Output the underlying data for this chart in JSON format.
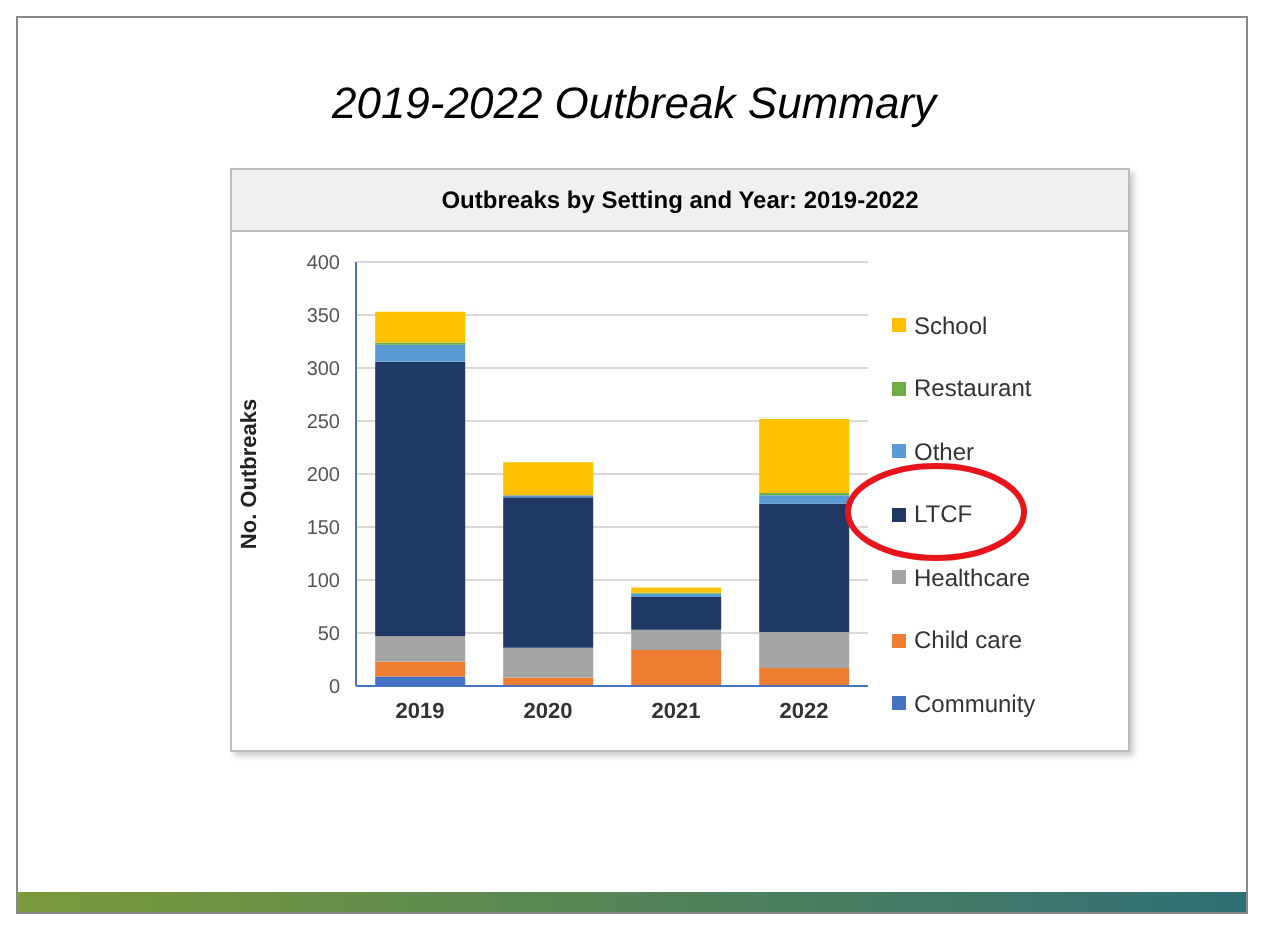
{
  "chart_data": {
    "type": "bar",
    "title": "2019-2022 Outbreak Summary",
    "subtitle": "Outbreaks by Setting and Year: 2019-2022",
    "ylabel": "No. Outbreaks",
    "categories": [
      "2019",
      "2020",
      "2021",
      "2022"
    ],
    "stacked": true,
    "ylim": [
      0,
      400
    ],
    "yticks": [
      0,
      50,
      100,
      150,
      200,
      250,
      300,
      350,
      400
    ],
    "grid": "y",
    "legend": "right",
    "series": [
      {
        "name": "Community",
        "color": "#4472c4",
        "values": [
          9,
          null,
          null,
          1
        ]
      },
      {
        "name": "Child care",
        "color": "#ed7d31",
        "values": [
          14,
          8,
          34,
          16
        ]
      },
      {
        "name": "Healthcare",
        "color": "#a5a5a5",
        "values": [
          24,
          28,
          19,
          34
        ]
      },
      {
        "name": "LTCF",
        "color": "#203864",
        "values": [
          259,
          142,
          31,
          121
        ]
      },
      {
        "name": "Other",
        "color": "#5b9bd5",
        "values": [
          16,
          2,
          3,
          8
        ]
      },
      {
        "name": "Restaurant",
        "color": "#70ad47",
        "values": [
          2,
          0,
          1,
          2
        ]
      },
      {
        "name": "School",
        "color": "#ffc000",
        "values": [
          29,
          31,
          5,
          70
        ]
      }
    ]
  }
}
